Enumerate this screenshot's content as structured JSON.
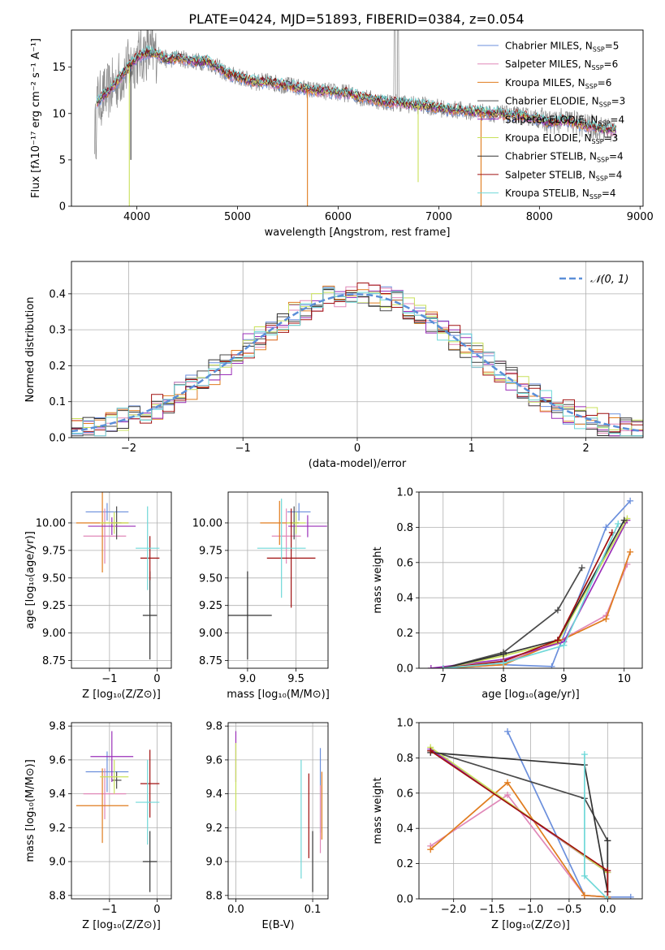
{
  "figure_title": "PLATE=0424, MJD=51893, FIBERID=0384, z=0.054",
  "colors": {
    "Chabrier MILES": "#6b8fdc",
    "Salpeter MILES": "#e088b8",
    "Kroupa MILES": "#e07c1e",
    "Chabrier ELODIE": "#4a4a4a",
    "Salpeter ELODIE": "#9a2fb8",
    "Kroupa ELODIE": "#c8e05a",
    "Chabrier STELIB": "#333333",
    "Salpeter STELIB": "#a01010",
    "Kroupa STELIB": "#6fd8d8"
  },
  "chart_data": [
    {
      "id": "spectrum",
      "type": "line",
      "title": "PLATE=0424, MJD=51893, FIBERID=0384, z=0.054",
      "xlabel": "wavelength [Angstrom, rest frame]",
      "ylabel": "Flux [fλ10⁻¹⁷ erg cm⁻² s⁻¹ A⁻¹]",
      "xlim": [
        3350,
        9030
      ],
      "ylim": [
        0,
        19
      ],
      "xticks": [
        4000,
        5000,
        6000,
        7000,
        8000,
        9000
      ],
      "yticks": [
        0,
        5,
        10,
        15
      ],
      "grid": false,
      "legend_position": "top-right",
      "legend": [
        {
          "name": "Chabrier MILES",
          "nssp": "5"
        },
        {
          "name": "Salpeter MILES",
          "nssp": "6"
        },
        {
          "name": "Kroupa MILES",
          "nssp": "6"
        },
        {
          "name": "Chabrier ELODIE",
          "nssp": "3"
        },
        {
          "name": "Salpeter ELODIE",
          "nssp": "4"
        },
        {
          "name": "Kroupa ELODIE",
          "nssp": "3"
        },
        {
          "name": "Chabrier STELIB",
          "nssp": "4"
        },
        {
          "name": "Salpeter STELIB",
          "nssp": "4"
        },
        {
          "name": "Kroupa STELIB",
          "nssp": "4"
        }
      ],
      "continuum": [
        [
          3600,
          11.2
        ],
        [
          3700,
          12.2
        ],
        [
          3800,
          13.4
        ],
        [
          3900,
          14.8
        ],
        [
          4000,
          16.0
        ],
        [
          4100,
          16.6
        ],
        [
          4200,
          16.4
        ],
        [
          4300,
          15.8
        ],
        [
          4400,
          16.0
        ],
        [
          4500,
          15.8
        ],
        [
          4600,
          15.6
        ],
        [
          4700,
          15.6
        ],
        [
          4800,
          15.0
        ],
        [
          4900,
          14.2
        ],
        [
          5000,
          14.0
        ],
        [
          5100,
          13.6
        ],
        [
          5200,
          13.4
        ],
        [
          5300,
          13.4
        ],
        [
          5400,
          13.2
        ],
        [
          5500,
          13.0
        ],
        [
          5600,
          12.8
        ],
        [
          5700,
          12.6
        ],
        [
          5800,
          12.4
        ],
        [
          5900,
          12.4
        ],
        [
          6000,
          12.2
        ],
        [
          6100,
          12.2
        ],
        [
          6200,
          11.8
        ],
        [
          6300,
          11.6
        ],
        [
          6400,
          11.4
        ],
        [
          6500,
          11.2
        ],
        [
          6600,
          11.2
        ],
        [
          6700,
          11.0
        ],
        [
          6800,
          10.9
        ],
        [
          6900,
          10.8
        ],
        [
          7000,
          10.6
        ],
        [
          7100,
          10.4
        ],
        [
          7200,
          10.4
        ],
        [
          7300,
          10.2
        ],
        [
          7400,
          10.2
        ],
        [
          7500,
          10.0
        ],
        [
          7600,
          10.0
        ],
        [
          7700,
          9.8
        ],
        [
          7800,
          9.8
        ],
        [
          7900,
          9.6
        ],
        [
          8000,
          9.4
        ],
        [
          8100,
          9.0
        ],
        [
          8200,
          9.2
        ],
        [
          8300,
          9.2
        ],
        [
          8400,
          8.8
        ],
        [
          8500,
          8.6
        ],
        [
          8600,
          8.4
        ],
        [
          8700,
          8.2
        ],
        [
          8750,
          8.2
        ]
      ]
    },
    {
      "id": "residuals",
      "type": "step",
      "xlabel": "(data-model)/error",
      "ylabel": "Normed distribution",
      "xlim": [
        -2.5,
        2.5
      ],
      "ylim": [
        0,
        0.49
      ],
      "xticks": [
        -2,
        -1,
        0,
        1,
        2
      ],
      "yticks": [
        0.0,
        0.1,
        0.2,
        0.3,
        0.4
      ],
      "grid": true,
      "legend_position": "top-right",
      "reference_curve": {
        "label": "𝒩(0, 1)",
        "mu": 0,
        "sigma": 1
      }
    },
    {
      "id": "age_vs_Z",
      "type": "errorbar",
      "xlabel": "Z [log₁₀(Z/Z⊙)]",
      "ylabel": "age  [log₁₀(age/yr)]",
      "xlim": [
        -1.8,
        0.3
      ],
      "ylim": [
        8.68,
        10.28
      ],
      "xticks": [
        -1,
        0
      ],
      "yticks": [
        8.75,
        9.0,
        9.25,
        9.5,
        9.75,
        10.0
      ],
      "grid": true,
      "points": [
        {
          "model": "Chabrier MILES",
          "x": -1.05,
          "xerr": 0.45,
          "y": 10.1,
          "yerr": 0.08
        },
        {
          "model": "Salpeter MILES",
          "x": -1.1,
          "xerr": 0.45,
          "y": 9.88,
          "yerr": 0.25
        },
        {
          "model": "Kroupa MILES",
          "x": -1.15,
          "xerr": 0.55,
          "y": 10.0,
          "yerr": 0.45
        },
        {
          "model": "Chabrier ELODIE",
          "x": -0.85,
          "xerr": 0.1,
          "y": 10.0,
          "yerr": 0.15
        },
        {
          "model": "Salpeter ELODIE",
          "x": -0.95,
          "xerr": 0.5,
          "y": 9.97,
          "yerr": 0.08
        },
        {
          "model": "Kroupa ELODIE",
          "x": -0.9,
          "xerr": 0.3,
          "y": 10.0,
          "yerr": 0.1
        },
        {
          "model": "Chabrier STELIB",
          "x": -0.15,
          "xerr": 0.15,
          "y": 9.16,
          "yerr": 0.4
        },
        {
          "model": "Salpeter STELIB",
          "x": -0.15,
          "xerr": 0.2,
          "y": 9.68,
          "yerr": 0.2
        },
        {
          "model": "Kroupa STELIB",
          "x": -0.2,
          "xerr": 0.25,
          "y": 9.77,
          "yerr": 0.38
        }
      ]
    },
    {
      "id": "age_vs_mass",
      "type": "errorbar",
      "xlabel": "mass [log₁₀(M/M⊙)]",
      "ylabel": "",
      "xlim": [
        8.8,
        9.83
      ],
      "ylim": [
        8.68,
        10.28
      ],
      "xticks": [
        9.0,
        9.5
      ],
      "yticks": [
        8.75,
        9.0,
        9.25,
        9.5,
        9.75,
        10.0
      ],
      "grid": true,
      "points": [
        {
          "model": "Chabrier MILES",
          "x": 9.53,
          "xerr": 0.12,
          "y": 10.1,
          "yerr": 0.08
        },
        {
          "model": "Salpeter MILES",
          "x": 9.4,
          "xerr": 0.15,
          "y": 9.88,
          "yerr": 0.25
        },
        {
          "model": "Kroupa MILES",
          "x": 9.33,
          "xerr": 0.2,
          "y": 10.0,
          "yerr": 0.2
        },
        {
          "model": "Chabrier ELODIE",
          "x": 9.48,
          "xerr": 0.05,
          "y": 10.0,
          "yerr": 0.15
        },
        {
          "model": "Salpeter ELODIE",
          "x": 9.62,
          "xerr": 0.2,
          "y": 9.97,
          "yerr": 0.1
        },
        {
          "model": "Kroupa ELODIE",
          "x": 9.5,
          "xerr": 0.1,
          "y": 10.0,
          "yerr": 0.1
        },
        {
          "model": "Chabrier STELIB",
          "x": 9.0,
          "xerr": 0.25,
          "y": 9.16,
          "yerr": 0.4
        },
        {
          "model": "Salpeter STELIB",
          "x": 9.45,
          "xerr": 0.25,
          "y": 9.68,
          "yerr": 0.45
        },
        {
          "model": "Kroupa STELIB",
          "x": 9.35,
          "xerr": 0.25,
          "y": 9.77,
          "yerr": 0.45
        }
      ]
    },
    {
      "id": "weight_vs_age",
      "type": "line",
      "xlabel": "age  [log₁₀(age/yr)]",
      "ylabel": "mass weight",
      "xlim": [
        6.6,
        10.3
      ],
      "ylim": [
        0,
        1
      ],
      "xticks": [
        7,
        8,
        9,
        10
      ],
      "yticks": [
        0.0,
        0.2,
        0.4,
        0.6,
        0.8,
        1.0
      ],
      "grid": true,
      "series": [
        {
          "model": "Chabrier MILES",
          "x": [
            7.0,
            8.0,
            8.8,
            9.7,
            10.1
          ],
          "y": [
            0.0,
            0.02,
            0.01,
            0.8,
            0.95
          ]
        },
        {
          "model": "Salpeter MILES",
          "x": [
            6.8,
            8.0,
            8.9,
            9.7,
            10.05
          ],
          "y": [
            0.0,
            0.03,
            0.15,
            0.3,
            0.59
          ]
        },
        {
          "model": "Kroupa MILES",
          "x": [
            7.0,
            8.0,
            8.9,
            9.7,
            10.1
          ],
          "y": [
            0.0,
            0.02,
            0.15,
            0.28,
            0.66
          ]
        },
        {
          "model": "Chabrier ELODIE",
          "x": [
            7.0,
            8.0,
            8.9,
            9.3
          ],
          "y": [
            0.0,
            0.09,
            0.33,
            0.57
          ]
        },
        {
          "model": "Salpeter ELODIE",
          "x": [
            6.8,
            8.0,
            9.0,
            10.05
          ],
          "y": [
            0.0,
            0.05,
            0.15,
            0.84
          ]
        },
        {
          "model": "Kroupa ELODIE",
          "x": [
            7.0,
            8.0,
            8.9,
            10.05
          ],
          "y": [
            0.0,
            0.07,
            0.15,
            0.85
          ]
        },
        {
          "model": "Chabrier STELIB",
          "x": [
            7.0,
            8.0,
            8.9,
            10.0
          ],
          "y": [
            0.0,
            0.08,
            0.16,
            0.84
          ]
        },
        {
          "model": "Salpeter STELIB",
          "x": [
            7.0,
            8.0,
            8.9,
            9.8
          ],
          "y": [
            0.0,
            0.04,
            0.16,
            0.77
          ]
        },
        {
          "model": "Kroupa STELIB",
          "x": [
            7.0,
            8.0,
            9.0,
            9.9
          ],
          "y": [
            0.0,
            0.03,
            0.13,
            0.82
          ]
        }
      ]
    },
    {
      "id": "mass_vs_Z",
      "type": "errorbar",
      "xlabel": "Z [log₁₀(Z/Z⊙)]",
      "ylabel": "mass [log₁₀(M/M⊙)]",
      "xlim": [
        -1.8,
        0.3
      ],
      "ylim": [
        8.78,
        9.82
      ],
      "xticks": [
        -1,
        0
      ],
      "yticks": [
        8.8,
        9.0,
        9.2,
        9.4,
        9.6,
        9.8
      ],
      "grid": true,
      "points": [
        {
          "model": "Chabrier MILES",
          "x": -1.05,
          "xerr": 0.45,
          "y": 9.53,
          "yerr": 0.12
        },
        {
          "model": "Salpeter MILES",
          "x": -1.1,
          "xerr": 0.45,
          "y": 9.4,
          "yerr": 0.15
        },
        {
          "model": "Kroupa MILES",
          "x": -1.15,
          "xerr": 0.55,
          "y": 9.33,
          "yerr": 0.22
        },
        {
          "model": "Chabrier ELODIE",
          "x": -0.85,
          "xerr": 0.1,
          "y": 9.48,
          "yerr": 0.05
        },
        {
          "model": "Salpeter ELODIE",
          "x": -0.95,
          "xerr": 0.45,
          "y": 9.62,
          "yerr": 0.15
        },
        {
          "model": "Kroupa ELODIE",
          "x": -0.9,
          "xerr": 0.3,
          "y": 9.5,
          "yerr": 0.1
        },
        {
          "model": "Chabrier STELIB",
          "x": -0.15,
          "xerr": 0.15,
          "y": 9.0,
          "yerr": 0.18
        },
        {
          "model": "Salpeter STELIB",
          "x": -0.15,
          "xerr": 0.2,
          "y": 9.46,
          "yerr": 0.2
        },
        {
          "model": "Kroupa STELIB",
          "x": -0.2,
          "xerr": 0.25,
          "y": 9.35,
          "yerr": 0.25
        }
      ]
    },
    {
      "id": "mass_vs_ebv",
      "type": "errorbar",
      "xlabel": "E(B-V)",
      "ylabel": "",
      "xlim": [
        -0.01,
        0.12
      ],
      "ylim": [
        8.78,
        9.82
      ],
      "xticks": [
        0.0,
        0.1
      ],
      "yticks": [
        8.8,
        9.0,
        9.2,
        9.4,
        9.6,
        9.8
      ],
      "grid": true,
      "points": [
        {
          "model": "Salpeter ELODIE",
          "x": 0.0,
          "xerr": 0,
          "y": 9.62,
          "yerr": 0.15
        },
        {
          "model": "Kroupa ELODIE",
          "x": 0.0,
          "xerr": 0,
          "y": 9.5,
          "yerr": 0.2
        },
        {
          "model": "Chabrier STELIB",
          "x": 0.1,
          "xerr": 0,
          "y": 9.0,
          "yerr": 0.18
        },
        {
          "model": "Salpeter STELIB",
          "x": 0.095,
          "xerr": 0,
          "y": 9.27,
          "yerr": 0.25
        },
        {
          "model": "Kroupa STELIB",
          "x": 0.085,
          "xerr": 0,
          "y": 9.25,
          "yerr": 0.35
        },
        {
          "model": "Chabrier MILES",
          "x": 0.11,
          "xerr": 0,
          "y": 9.42,
          "yerr": 0.25
        },
        {
          "model": "Salpeter MILES",
          "x": 0.11,
          "xerr": 0,
          "y": 9.25,
          "yerr": 0.2
        },
        {
          "model": "Kroupa MILES",
          "x": 0.112,
          "xerr": 0,
          "y": 9.33,
          "yerr": 0.2
        }
      ]
    },
    {
      "id": "weight_vs_Z",
      "type": "line",
      "xlabel": "Z [log₁₀(Z/Z⊙)]",
      "ylabel": "mass weight",
      "xlim": [
        -2.45,
        0.45
      ],
      "ylim": [
        0,
        1
      ],
      "xticks": [
        -2.0,
        -1.5,
        -1.0,
        -0.5,
        0.0
      ],
      "yticks": [
        0.0,
        0.2,
        0.4,
        0.6,
        0.8,
        1.0
      ],
      "grid": true,
      "series": [
        {
          "model": "Chabrier MILES",
          "x": [
            -1.3,
            -0.3,
            0.0,
            0.3
          ],
          "y": [
            0.95,
            0.02,
            0.01,
            0.01
          ]
        },
        {
          "model": "Salpeter MILES",
          "x": [
            -2.3,
            -1.3,
            -0.3,
            0.0
          ],
          "y": [
            0.3,
            0.59,
            0.02,
            0.01
          ]
        },
        {
          "model": "Kroupa MILES",
          "x": [
            -2.3,
            -1.3,
            -0.3,
            0.0
          ],
          "y": [
            0.28,
            0.66,
            0.02,
            0.01
          ]
        },
        {
          "model": "Chabrier ELODIE",
          "x": [
            -2.3,
            -0.3,
            0.0
          ],
          "y": [
            0.84,
            0.57,
            0.33
          ]
        },
        {
          "model": "Salpeter ELODIE",
          "x": [
            -2.3,
            0.0,
            0.0
          ],
          "y": [
            0.85,
            0.15,
            0.0
          ]
        },
        {
          "model": "Kroupa ELODIE",
          "x": [
            -2.3,
            0.0,
            0.0
          ],
          "y": [
            0.86,
            0.15,
            0.0
          ]
        },
        {
          "model": "Chabrier STELIB",
          "x": [
            -2.3,
            -0.3,
            0.0,
            0.0
          ],
          "y": [
            0.83,
            0.76,
            0.04,
            0.33
          ]
        },
        {
          "model": "Salpeter STELIB",
          "x": [
            -2.3,
            0.0,
            0.0
          ],
          "y": [
            0.84,
            0.16,
            0.0
          ]
        },
        {
          "model": "Kroupa STELIB",
          "x": [
            -0.3,
            -0.3,
            0.0
          ],
          "y": [
            0.82,
            0.13,
            0.0
          ]
        }
      ]
    }
  ]
}
